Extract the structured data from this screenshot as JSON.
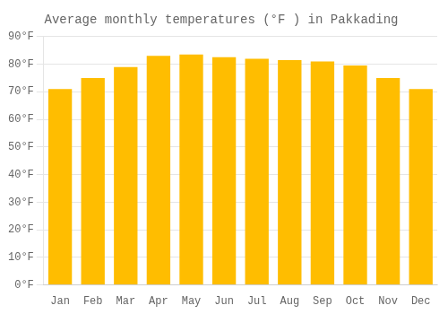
{
  "chart_data": {
    "type": "bar",
    "title": "Average monthly temperatures (°F ) in Pakkading",
    "categories": [
      "Jan",
      "Feb",
      "Mar",
      "Apr",
      "May",
      "Jun",
      "Jul",
      "Aug",
      "Sep",
      "Oct",
      "Nov",
      "Dec"
    ],
    "values": [
      71,
      75,
      79,
      83,
      83.5,
      82.5,
      82,
      81.5,
      81,
      79.5,
      75,
      71
    ],
    "color": "#FFBD00",
    "ylim": [
      0,
      90
    ],
    "yticks": [
      {
        "value": 0,
        "label": "0°F"
      },
      {
        "value": 10,
        "label": "10°F"
      },
      {
        "value": 20,
        "label": "20°F"
      },
      {
        "value": 30,
        "label": "30°F"
      },
      {
        "value": 40,
        "label": "40°F"
      },
      {
        "value": 50,
        "label": "50°F"
      },
      {
        "value": 60,
        "label": "60°F"
      },
      {
        "value": 70,
        "label": "70°F"
      },
      {
        "value": 80,
        "label": "80°F"
      },
      {
        "value": 90,
        "label": "90°F"
      }
    ],
    "grid": true
  }
}
